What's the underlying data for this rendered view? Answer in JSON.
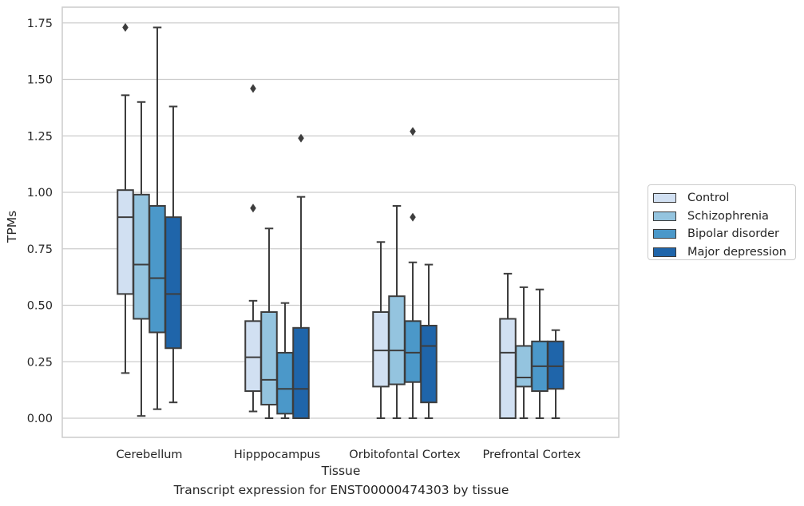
{
  "caption": "Transcript expression for ENST00000474303 by tissue",
  "chart_data": {
    "type": "box",
    "xlabel": "Tissue",
    "ylabel": "TPMs",
    "ylim": [
      -0.085,
      1.82
    ],
    "yticks": [
      0.0,
      0.25,
      0.5,
      0.75,
      1.0,
      1.25,
      1.5,
      1.75
    ],
    "ytick_labels": [
      "0.00",
      "0.25",
      "0.50",
      "0.75",
      "1.00",
      "1.25",
      "1.50",
      "1.75"
    ],
    "grid": "horizontal",
    "legend_position": "right",
    "categories": [
      "Cerebellum",
      "Hipppocampus",
      "Orbitofontal Cortex",
      "Prefrontal Cortex"
    ],
    "series": [
      {
        "name": "Control",
        "color": "#d1e0f2",
        "boxes": [
          {
            "whisker_low": 0.2,
            "q1": 0.55,
            "median": 0.89,
            "q3": 1.01,
            "whisker_high": 1.43,
            "outliers": [
              1.73
            ]
          },
          {
            "whisker_low": 0.03,
            "q1": 0.12,
            "median": 0.27,
            "q3": 0.43,
            "whisker_high": 0.52,
            "outliers": [
              0.93,
              1.46
            ]
          },
          {
            "whisker_low": 0.0,
            "q1": 0.14,
            "median": 0.3,
            "q3": 0.47,
            "whisker_high": 0.78,
            "outliers": []
          },
          {
            "whisker_low": 0.0,
            "q1": 0.0,
            "median": 0.29,
            "q3": 0.44,
            "whisker_high": 0.64,
            "outliers": []
          }
        ]
      },
      {
        "name": "Schizophrenia",
        "color": "#94c4df",
        "boxes": [
          {
            "whisker_low": 0.01,
            "q1": 0.44,
            "median": 0.68,
            "q3": 0.99,
            "whisker_high": 1.4,
            "outliers": []
          },
          {
            "whisker_low": 0.0,
            "q1": 0.06,
            "median": 0.17,
            "q3": 0.47,
            "whisker_high": 0.84,
            "outliers": []
          },
          {
            "whisker_low": 0.0,
            "q1": 0.15,
            "median": 0.3,
            "q3": 0.54,
            "whisker_high": 0.94,
            "outliers": []
          },
          {
            "whisker_low": 0.0,
            "q1": 0.14,
            "median": 0.18,
            "q3": 0.32,
            "whisker_high": 0.58,
            "outliers": []
          }
        ]
      },
      {
        "name": "Bipolar disorder",
        "color": "#4b98c9",
        "boxes": [
          {
            "whisker_low": 0.04,
            "q1": 0.38,
            "median": 0.62,
            "q3": 0.94,
            "whisker_high": 1.73,
            "outliers": []
          },
          {
            "whisker_low": 0.0,
            "q1": 0.02,
            "median": 0.13,
            "q3": 0.29,
            "whisker_high": 0.51,
            "outliers": []
          },
          {
            "whisker_low": 0.0,
            "q1": 0.16,
            "median": 0.29,
            "q3": 0.43,
            "whisker_high": 0.69,
            "outliers": [
              0.89,
              1.27
            ]
          },
          {
            "whisker_low": 0.0,
            "q1": 0.12,
            "median": 0.23,
            "q3": 0.34,
            "whisker_high": 0.57,
            "outliers": []
          }
        ]
      },
      {
        "name": "Major depression",
        "color": "#1f65aa",
        "boxes": [
          {
            "whisker_low": 0.07,
            "q1": 0.31,
            "median": 0.55,
            "q3": 0.89,
            "whisker_high": 1.38,
            "outliers": []
          },
          {
            "whisker_low": 0.0,
            "q1": 0.0,
            "median": 0.13,
            "q3": 0.4,
            "whisker_high": 0.98,
            "outliers": [
              1.24
            ]
          },
          {
            "whisker_low": 0.0,
            "q1": 0.07,
            "median": 0.32,
            "q3": 0.41,
            "whisker_high": 0.68,
            "outliers": []
          },
          {
            "whisker_low": 0.0,
            "q1": 0.13,
            "median": 0.23,
            "q3": 0.34,
            "whisker_high": 0.39,
            "outliers": []
          }
        ]
      }
    ]
  }
}
